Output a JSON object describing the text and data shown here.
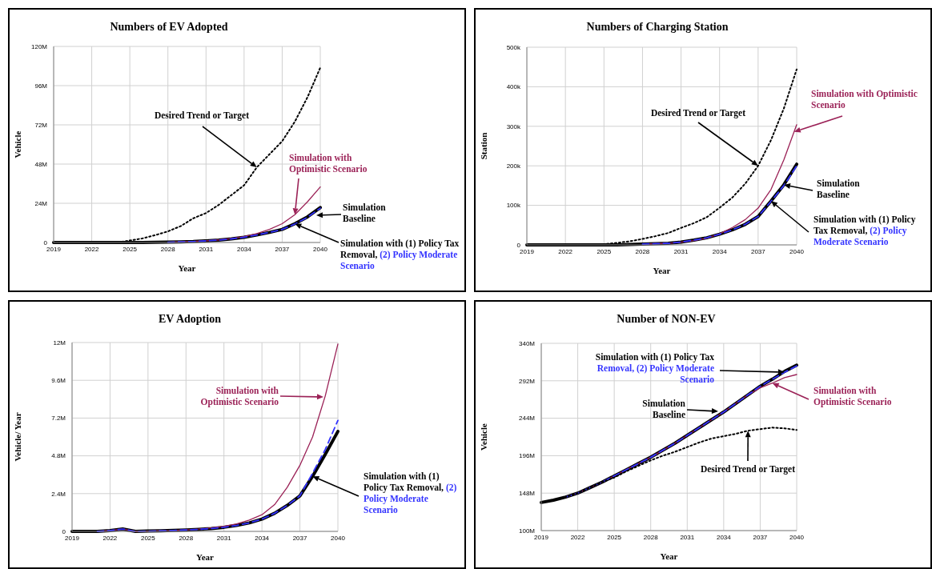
{
  "chart_data": [
    {
      "type": "line",
      "title": "Numbers of EV Adopted",
      "xlabel": "Year",
      "ylabel": "Vehicle",
      "x": [
        2019,
        2020,
        2021,
        2022,
        2023,
        2024,
        2025,
        2026,
        2027,
        2028,
        2029,
        2030,
        2031,
        2032,
        2033,
        2034,
        2035,
        2036,
        2037,
        2038,
        2039,
        2040
      ],
      "series": [
        {
          "color": "#000000",
          "line_style": "solid",
          "values": [
            0,
            0,
            0,
            0,
            0,
            0,
            0,
            0,
            100000,
            200000,
            400000,
            600000,
            1000000,
            1500000,
            2200000,
            3200000,
            4600000,
            6200000,
            8000000,
            11500000,
            15700000,
            21400000
          ]
        },
        {
          "color": "#9b2257",
          "line_style": "solid",
          "values": [
            null,
            null,
            null,
            null,
            null,
            null,
            null,
            null,
            null,
            200000,
            400000,
            700000,
            1000000,
            1600000,
            2400000,
            3600000,
            5400000,
            8000000,
            11500000,
            17000000,
            25000000,
            34000000
          ]
        },
        {
          "color": "#3333ff",
          "line_style": "dashed",
          "values": [
            null,
            null,
            null,
            null,
            null,
            null,
            null,
            null,
            null,
            200000,
            400000,
            600000,
            1000000,
            1500000,
            2200000,
            3200000,
            4600000,
            6200000,
            8000000,
            11300000,
            15500000,
            21000000
          ]
        },
        {
          "color": "#000000",
          "line_style": "dotted",
          "values": [
            0,
            0,
            0,
            0,
            0,
            0,
            1200000,
            2500000,
            4500000,
            6800000,
            10000000,
            14800000,
            18000000,
            23000000,
            29000000,
            35000000,
            46000000,
            54000000,
            62000000,
            74000000,
            89000000,
            107000000
          ]
        }
      ],
      "xlim": [
        2019,
        2040
      ],
      "xticks": [
        2019,
        2022,
        2025,
        2028,
        2031,
        2034,
        2037,
        2040
      ],
      "ylim": [
        0,
        120000000
      ],
      "yticks": [
        {
          "value": 0,
          "label": "0"
        },
        {
          "value": 24000000,
          "label": "24M"
        },
        {
          "value": 48000000,
          "label": "48M"
        },
        {
          "value": 72000000,
          "label": "72M"
        },
        {
          "value": 96000000,
          "label": "96M"
        },
        {
          "value": 120000000,
          "label": "120M"
        }
      ],
      "grid": true,
      "legend": false,
      "marker": "none",
      "annotations": [
        {
          "text": "Desired Trend or Target",
          "x": 2035,
          "y": 46000000
        },
        {
          "text": "Simulation with Optimistic Scenario",
          "x": 2038,
          "y": 17000000
        },
        "Simulation Baseline",
        {
          "text": "Simulation with (1) Policy Tax Removal,",
          "x": 2038,
          "y": 11500000
        },
        "(2) Policy Moderate Scenario"
      ]
    },
    {
      "type": "line",
      "title": "Numbers of Charging Station",
      "xlabel": "Year",
      "ylabel": "Station",
      "x": [
        2019,
        2020,
        2021,
        2022,
        2023,
        2024,
        2025,
        2026,
        2027,
        2028,
        2029,
        2030,
        2031,
        2032,
        2033,
        2034,
        2035,
        2036,
        2037,
        2038,
        2039,
        2040
      ],
      "series": [
        {
          "color": "#000000",
          "line_style": "solid",
          "values": [
            0,
            0,
            0,
            0,
            0,
            0,
            0,
            0,
            1000,
            2000,
            3000,
            4000,
            7000,
            12000,
            18000,
            27000,
            38000,
            52000,
            72000,
            111000,
            152000,
            204000
          ]
        },
        {
          "color": "#9b2257",
          "line_style": "solid",
          "values": [
            null,
            null,
            null,
            null,
            null,
            null,
            null,
            null,
            null,
            2000,
            3000,
            4000,
            7000,
            11000,
            17000,
            28000,
            44000,
            64000,
            93000,
            140000,
            215000,
            304000
          ]
        },
        {
          "color": "#3333ff",
          "line_style": "dashed",
          "values": [
            null,
            null,
            null,
            null,
            null,
            null,
            null,
            null,
            null,
            2000,
            3000,
            4000,
            7000,
            12000,
            18000,
            27000,
            38000,
            52000,
            72000,
            110000,
            150000,
            200000
          ]
        },
        {
          "color": "#000000",
          "line_style": "dotted",
          "values": [
            0,
            0,
            0,
            0,
            0,
            0,
            2000,
            5000,
            9000,
            15000,
            22000,
            30000,
            43000,
            55000,
            70000,
            94000,
            120000,
            155000,
            200000,
            265000,
            345000,
            444000
          ]
        }
      ],
      "xlim": [
        2019,
        2040
      ],
      "xticks": [
        2019,
        2022,
        2025,
        2028,
        2031,
        2034,
        2037,
        2040
      ],
      "ylim": [
        0,
        500000
      ],
      "yticks": [
        {
          "value": 0,
          "label": "0"
        },
        {
          "value": 100000,
          "label": "100k"
        },
        {
          "value": 200000,
          "label": "200k"
        },
        {
          "value": 300000,
          "label": "300k"
        },
        {
          "value": 400000,
          "label": "400k"
        },
        {
          "value": 500000,
          "label": "500k"
        }
      ],
      "grid": true,
      "legend": false,
      "marker": "none",
      "annotations": [
        {
          "text": "Desired Trend or Target",
          "x": 2037,
          "y": 200000
        },
        {
          "text": "Simulation with Optimistic Scenario",
          "x": 2039.8,
          "y": 286000
        },
        {
          "text": "Simulation Baseline",
          "x": 2039,
          "y": 152000
        },
        {
          "text": "Simulation with (1) Policy Tax Removal,",
          "x": 2038,
          "y": 111000
        },
        "(2) Policy Moderate Scenario"
      ]
    },
    {
      "type": "line",
      "title": "EV Adoption",
      "xlabel": "Year",
      "ylabel": "Vehicle/ Year",
      "x": [
        2019,
        2020,
        2021,
        2022,
        2023,
        2024,
        2025,
        2026,
        2027,
        2028,
        2029,
        2030,
        2031,
        2032,
        2033,
        2034,
        2035,
        2036,
        2037,
        2038,
        2039,
        2040
      ],
      "series": [
        {
          "color": "#000000",
          "line_style": "solid",
          "values": [
            0,
            0,
            0,
            50000,
            150000,
            0,
            20000,
            40000,
            60000,
            90000,
            130000,
            180000,
            260000,
            380000,
            540000,
            780000,
            1150000,
            1650000,
            2260000,
            3500000,
            4900000,
            6350000
          ]
        },
        {
          "color": "#9b2257",
          "line_style": "solid",
          "values": [
            null,
            null,
            0,
            50000,
            150000,
            0,
            20000,
            40000,
            60000,
            100000,
            150000,
            220000,
            320000,
            480000,
            720000,
            1060000,
            1700000,
            2800000,
            4200000,
            6000000,
            8600000,
            11900000
          ]
        },
        {
          "color": "#3333ff",
          "line_style": "dashed",
          "values": [
            null,
            null,
            0,
            50000,
            150000,
            0,
            20000,
            40000,
            60000,
            90000,
            130000,
            180000,
            260000,
            380000,
            540000,
            780000,
            1150000,
            1650000,
            2260000,
            3700000,
            5200000,
            7050000
          ]
        }
      ],
      "xlim": [
        2019,
        2040
      ],
      "xticks": [
        2019,
        2022,
        2025,
        2028,
        2031,
        2034,
        2037,
        2040
      ],
      "ylim": [
        0,
        12000000
      ],
      "yticks": [
        {
          "value": 0,
          "label": "0"
        },
        {
          "value": 2400000,
          "label": "2.4M"
        },
        {
          "value": 4800000,
          "label": "4.8M"
        },
        {
          "value": 7200000,
          "label": "7.2M"
        },
        {
          "value": 9600000,
          "label": "9.6M"
        },
        {
          "value": 12000000,
          "label": "12M"
        }
      ],
      "grid": true,
      "legend": false,
      "marker": "none",
      "annotations": [
        "Simulation with Optimistic Scenario",
        {
          "text": "Simulation with (1) Policy Tax Removal,",
          "x": 2038,
          "y": 3500000
        },
        "(2) Policy Moderate Scenario"
      ]
    },
    {
      "type": "line",
      "title": "Number of NON-EV",
      "xlabel": "Year",
      "ylabel": "Vehicle",
      "x": [
        2019,
        2020,
        2021,
        2022,
        2023,
        2024,
        2025,
        2026,
        2027,
        2028,
        2029,
        2030,
        2031,
        2032,
        2033,
        2034,
        2035,
        2036,
        2037,
        2038,
        2039,
        2040
      ],
      "series": [
        {
          "color": "#000000",
          "line_style": "solid",
          "values": [
            136000000,
            139000000,
            143000000,
            148000000,
            155000000,
            162000000,
            170000000,
            178000000,
            186000000,
            194000000,
            203000000,
            212000000,
            222000000,
            232000000,
            242000000,
            252000000,
            263000000,
            274000000,
            285000000,
            294000000,
            304000000,
            312000000
          ]
        },
        {
          "color": "#9b2257",
          "line_style": "solid",
          "values": [
            null,
            null,
            143000000,
            148000000,
            155000000,
            162000000,
            170000000,
            178000000,
            186000000,
            194000000,
            203000000,
            212000000,
            222000000,
            232000000,
            242000000,
            252000000,
            263000000,
            274000000,
            283000000,
            289000000,
            296000000,
            300000000
          ]
        },
        {
          "color": "#3333ff",
          "line_style": "dashed",
          "values": [
            null,
            null,
            143000000,
            148000000,
            155000000,
            162000000,
            170000000,
            178000000,
            186000000,
            194000000,
            203000000,
            212000000,
            222000000,
            232000000,
            242000000,
            252000000,
            263000000,
            274000000,
            285000000,
            294000000,
            303000000,
            311000000
          ]
        },
        {
          "color": "#000000",
          "line_style": "dotted",
          "values": [
            136000000,
            139000000,
            143000000,
            148000000,
            155000000,
            162000000,
            168000000,
            176000000,
            183000000,
            190000000,
            196000000,
            201000000,
            207000000,
            213000000,
            218000000,
            221000000,
            224000000,
            228000000,
            230000000,
            232000000,
            231000000,
            229000000
          ]
        }
      ],
      "xlim": [
        2019,
        2040
      ],
      "xticks": [
        2019,
        2022,
        2025,
        2028,
        2031,
        2034,
        2037,
        2040
      ],
      "ylim": [
        100000000,
        340000000
      ],
      "yticks": [
        {
          "value": 100000000,
          "label": "100M"
        },
        {
          "value": 148000000,
          "label": "148M"
        },
        {
          "value": 196000000,
          "label": "196M"
        },
        {
          "value": 244000000,
          "label": "244M"
        },
        {
          "value": 292000000,
          "label": "292M"
        },
        {
          "value": 340000000,
          "label": "340M"
        }
      ],
      "grid": true,
      "legend": false,
      "marker": "none",
      "annotations": [
        {
          "text": "Simulation with (1) Policy Tax",
          "x": 2039,
          "y": 303000000
        },
        "Removal, (2) Policy Moderate Scenario",
        "Simulation Baseline",
        {
          "text": "Simulation with Optimistic Scenario",
          "x": 2038,
          "y": 289000000
        },
        {
          "text": "Desired Trend or Target",
          "x": 2036,
          "y": 228000000
        }
      ]
    }
  ]
}
